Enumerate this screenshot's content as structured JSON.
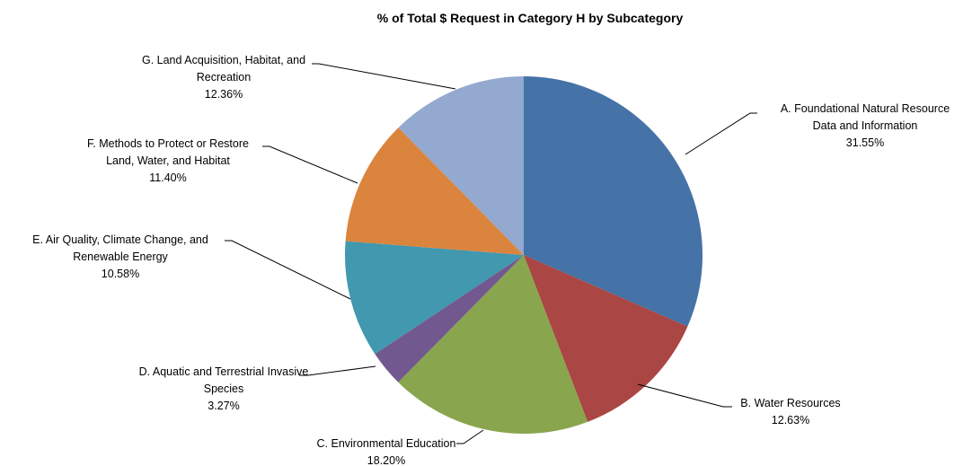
{
  "chart_data": {
    "type": "pie",
    "title": "% of Total $ Request in Category H by Subcategory",
    "start_angle_deg": 0,
    "direction": "clockwise",
    "slices": [
      {
        "label_lines": [
          "A. Foundational Natural Resource",
          "Data and Information"
        ],
        "value": 31.55,
        "display": "31.55%",
        "color": "#4572A7"
      },
      {
        "label_lines": [
          "B. Water Resources"
        ],
        "value": 12.63,
        "display": "12.63%",
        "color": "#AA4643"
      },
      {
        "label_lines": [
          "C. Environmental Education"
        ],
        "value": 18.2,
        "display": "18.20%",
        "color": "#89A54E"
      },
      {
        "label_lines": [
          "D. Aquatic and Terrestrial Invasive",
          "Species"
        ],
        "value": 3.27,
        "display": "3.27%",
        "color": "#71588F"
      },
      {
        "label_lines": [
          "E. Air Quality, Climate Change, and",
          "Renewable Energy"
        ],
        "value": 10.58,
        "display": "10.58%",
        "color": "#4198AF"
      },
      {
        "label_lines": [
          "F. Methods to Protect or Restore",
          "Land, Water, and Habitat"
        ],
        "value": 11.4,
        "display": "11.40%",
        "color": "#DB843D"
      },
      {
        "label_lines": [
          "G. Land Acquisition, Habitat, and",
          "Recreation"
        ],
        "value": 12.36,
        "display": "12.36%",
        "color": "#93A9CF"
      }
    ]
  }
}
